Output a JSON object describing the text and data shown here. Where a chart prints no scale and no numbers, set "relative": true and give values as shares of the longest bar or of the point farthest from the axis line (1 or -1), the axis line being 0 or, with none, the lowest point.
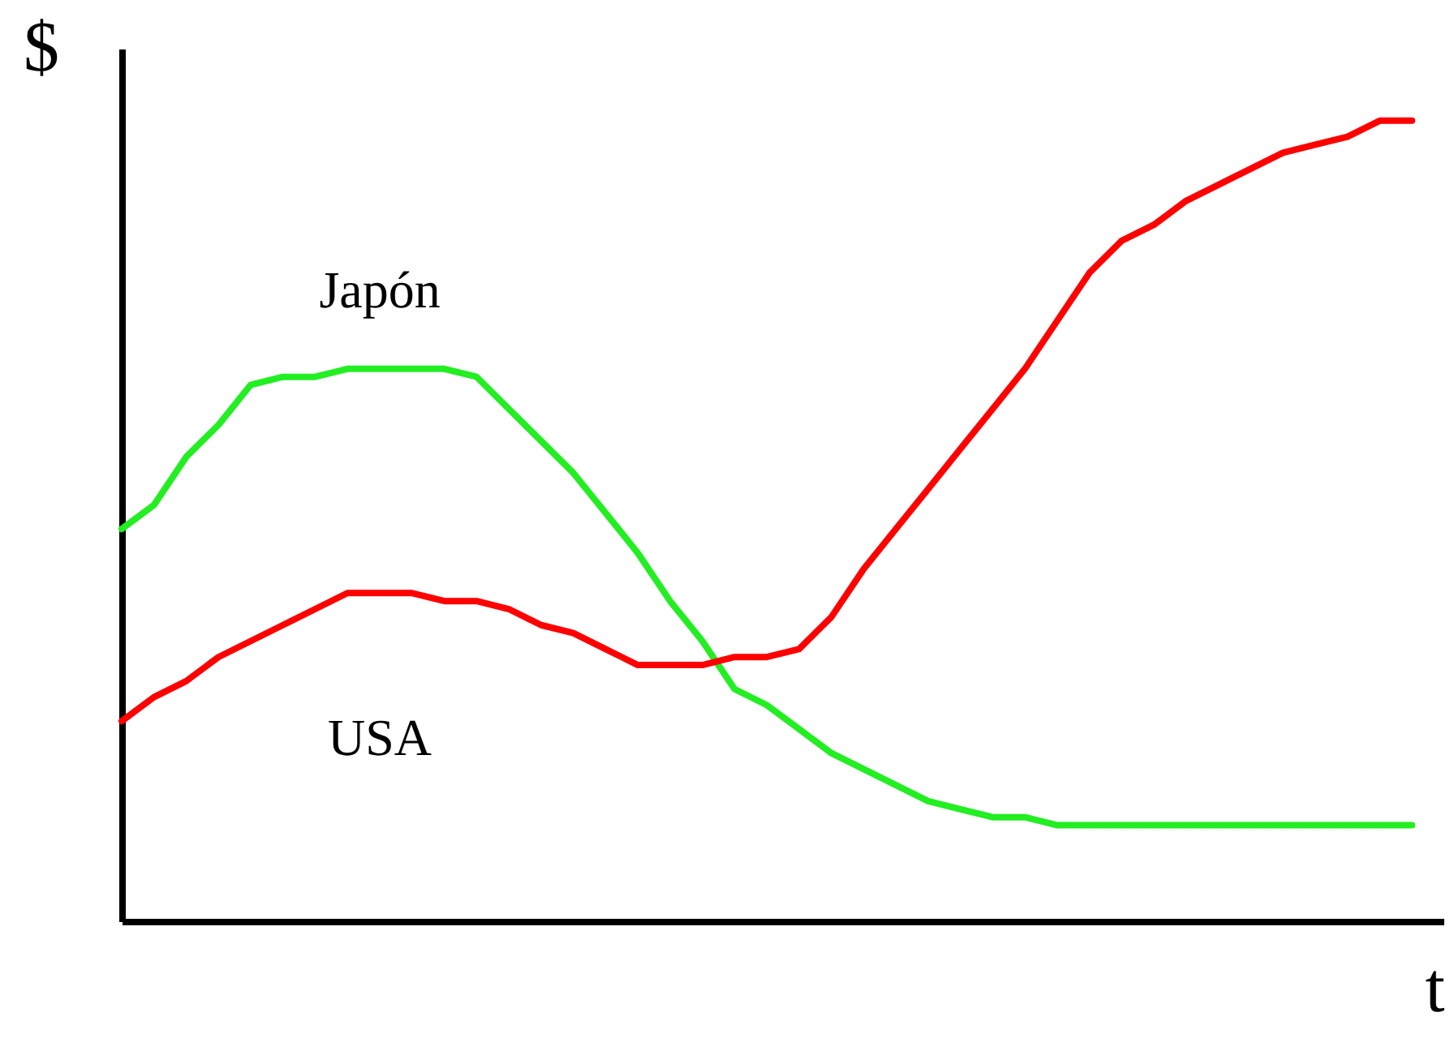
{
  "chart_data": {
    "type": "line",
    "xlabel": "t",
    "ylabel": "$",
    "relative": true,
    "categories": [
      null,
      null,
      null,
      null,
      null,
      null,
      null,
      null,
      null,
      null,
      null,
      null,
      null,
      null,
      null,
      null,
      null,
      null,
      null,
      null,
      null,
      null,
      null,
      null,
      null,
      null,
      null,
      null,
      null,
      null,
      null,
      null,
      null,
      null,
      null,
      null,
      null,
      null,
      null,
      null,
      null
    ],
    "series": [
      {
        "name": "Japón",
        "color": "#22ee22",
        "values": [
          0.49,
          0.52,
          0.58,
          0.62,
          0.67,
          0.68,
          0.68,
          0.69,
          0.69,
          0.69,
          0.69,
          0.68,
          0.64,
          0.6,
          0.56,
          0.51,
          0.46,
          0.4,
          0.35,
          0.29,
          0.27,
          0.24,
          0.21,
          0.19,
          0.17,
          0.15,
          0.14,
          0.13,
          0.13,
          0.12,
          0.12,
          0.12,
          0.12,
          0.12,
          0.12,
          0.12,
          0.12,
          0.12,
          0.12,
          0.12,
          0.12
        ]
      },
      {
        "name": "USA",
        "color": "#ff0000",
        "values": [
          0.25,
          0.28,
          0.3,
          0.33,
          0.35,
          0.37,
          0.39,
          0.41,
          0.41,
          0.41,
          0.4,
          0.4,
          0.39,
          0.37,
          0.36,
          0.34,
          0.32,
          0.32,
          0.32,
          0.33,
          0.33,
          0.34,
          0.38,
          0.44,
          0.49,
          0.54,
          0.59,
          0.64,
          0.69,
          0.75,
          0.81,
          0.85,
          0.87,
          0.9,
          0.92,
          0.94,
          0.96,
          0.97,
          0.98,
          1.0,
          1.0
        ]
      }
    ]
  }
}
